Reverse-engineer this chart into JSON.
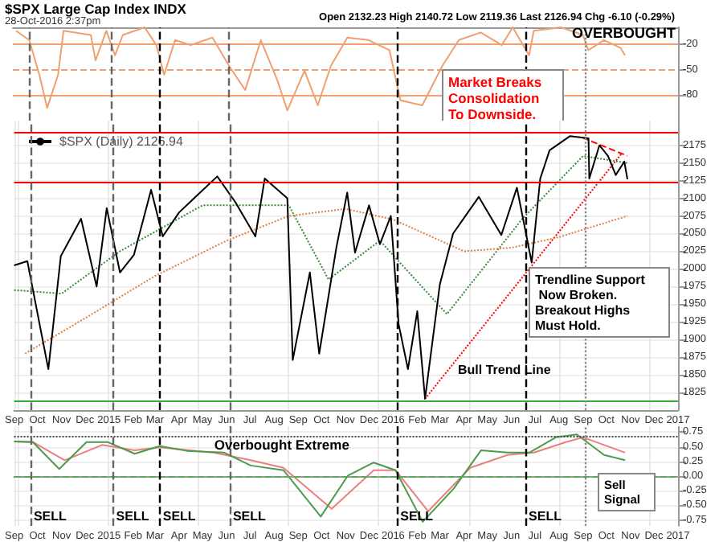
{
  "chart_data": [
    {
      "type": "line",
      "title": "$SPX Large Cap Index INDX",
      "subtitle": "28-Oct-2016 2:37pm",
      "annotations": [
        "Open 2132.23 High 2140.72 Low 2119.36 Last 2126.94 Chg -6.10 (-0.29%)",
        "OVERBOUGHT",
        "Market Breaks Consolidation To Downside."
      ],
      "xlim": [
        "2014-09-01",
        "2017-01-01"
      ],
      "ylim": [
        -110,
        0
      ],
      "yticks": [
        -20,
        -50,
        -80
      ],
      "tick_labels": "y",
      "grid": false,
      "marker": "none",
      "series": [
        {
          "color": "#f0a070",
          "x": [
            "2014-09-05",
            "2014-09-22",
            "2014-10-05",
            "2014-10-15",
            "2014-10-29",
            "2014-11-05",
            "2014-12-10",
            "2014-12-16",
            "2014-12-30",
            "2015-01-10",
            "2015-01-20",
            "2015-02-17",
            "2015-03-04",
            "2015-03-14",
            "2015-03-28",
            "2015-04-17",
            "2015-05-15",
            "2015-06-05",
            "2015-06-26",
            "2015-07-16",
            "2015-08-06",
            "2015-08-19",
            "2015-09-10",
            "2015-09-27",
            "2015-10-14",
            "2015-11-04",
            "2015-12-01",
            "2015-12-28",
            "2016-01-11",
            "2016-02-08",
            "2016-03-05",
            "2016-03-26",
            "2016-04-23",
            "2016-05-20",
            "2016-06-03",
            "2016-06-24",
            "2016-06-30",
            "2016-08-04",
            "2016-09-01",
            "2016-09-08",
            "2016-09-28",
            "2016-10-19",
            "2016-10-25"
          ],
          "values": [
            -4,
            -15,
            -56,
            -95,
            -56,
            -4,
            -9,
            -39,
            -4,
            -33,
            -9,
            0,
            -21,
            -56,
            -15,
            -21,
            -12,
            -45,
            -74,
            -15,
            -62,
            -98,
            -51,
            -92,
            -45,
            -12,
            -15,
            -27,
            -86,
            -92,
            -45,
            -15,
            -6,
            -21,
            0,
            -33,
            -4,
            0,
            -9,
            -27,
            -15,
            -24,
            -33
          ]
        }
      ],
      "ref_lines": [
        {
          "axis": "y",
          "value": -20,
          "color": "#f0a070",
          "line_style": "solid"
        },
        {
          "axis": "y",
          "value": -50,
          "color": "#f0a070",
          "line_style": "dashed"
        },
        {
          "axis": "y",
          "value": -80,
          "color": "#f0a070",
          "line_style": "solid"
        },
        {
          "axis": "x",
          "value": "2014-09-22",
          "color": "#666666",
          "line_style": "dashed"
        },
        {
          "axis": "x",
          "value": "2015-01-06",
          "color": "#666666",
          "line_style": "dashed"
        },
        {
          "axis": "x",
          "value": "2015-03-07",
          "color": "#000000",
          "line_style": "dashed"
        },
        {
          "axis": "x",
          "value": "2015-06-05",
          "color": "#666666",
          "line_style": "dashed"
        },
        {
          "axis": "x",
          "value": "2016-01-06",
          "color": "#000000",
          "line_style": "dashed"
        },
        {
          "axis": "x",
          "value": "2016-06-19",
          "color": "#000000",
          "line_style": "dashed"
        },
        {
          "axis": "x",
          "value": "2016-09-04",
          "color": "#888888",
          "line_style": "dotted"
        }
      ]
    },
    {
      "type": "line",
      "legend": "top left",
      "xlim": [
        "2014-09-01",
        "2017-01-01"
      ],
      "ylim": [
        1800,
        2210
      ],
      "yticks": [
        1825,
        1850,
        1875,
        1900,
        1925,
        1950,
        1975,
        2000,
        2025,
        2050,
        2075,
        2100,
        2125,
        2150,
        2175
      ],
      "grid": true,
      "marker": "none",
      "annotations": [
        "Trendline Support Now Broken. Breakout Highs Must Hold.",
        "Bull Trend Line"
      ],
      "xticks": [
        {
          "value": "2014-09",
          "label": "Sep"
        },
        {
          "value": "2014-10",
          "label": "Oct"
        },
        {
          "value": "2014-11",
          "label": "Nov"
        },
        {
          "value": "2014-12",
          "label": "Dec"
        },
        {
          "value": "2015-01",
          "label": "2015"
        },
        {
          "value": "2015-02",
          "label": "Feb"
        },
        {
          "value": "2015-03",
          "label": "Mar"
        },
        {
          "value": "2015-04",
          "label": "Apr"
        },
        {
          "value": "2015-05",
          "label": "May"
        },
        {
          "value": "2015-06",
          "label": "Jun"
        },
        {
          "value": "2015-07",
          "label": "Jul"
        },
        {
          "value": "2015-08",
          "label": "Aug"
        },
        {
          "value": "2015-09",
          "label": "Sep"
        },
        {
          "value": "2015-10",
          "label": "Oct"
        },
        {
          "value": "2015-11",
          "label": "Nov"
        },
        {
          "value": "2015-12",
          "label": "Dec"
        },
        {
          "value": "2016-01",
          "label": "2016"
        },
        {
          "value": "2016-02",
          "label": "Feb"
        },
        {
          "value": "2016-03",
          "label": "Mar"
        },
        {
          "value": "2016-04",
          "label": "Apr"
        },
        {
          "value": "2016-05",
          "label": "May"
        },
        {
          "value": "2016-06",
          "label": "Jun"
        },
        {
          "value": "2016-07",
          "label": "Jul"
        },
        {
          "value": "2016-08",
          "label": "Aug"
        },
        {
          "value": "2016-09",
          "label": "Sep"
        },
        {
          "value": "2016-10",
          "label": "Oct"
        },
        {
          "value": "2016-11",
          "label": "Nov"
        },
        {
          "value": "2016-12",
          "label": "Dec"
        },
        {
          "value": "2017-01",
          "label": "2017"
        }
      ],
      "series": [
        {
          "name": "$SPX (Daily) 2126.94",
          "color": "#000000",
          "x": [
            "2014-09-01",
            "2014-09-18",
            "2014-10-15",
            "2014-10-31",
            "2014-11-26",
            "2014-12-16",
            "2014-12-29",
            "2015-01-15",
            "2015-02-02",
            "2015-02-24",
            "2015-03-11",
            "2015-04-01",
            "2015-05-20",
            "2015-06-12",
            "2015-07-08",
            "2015-07-20",
            "2015-08-18",
            "2015-08-25",
            "2015-09-16",
            "2015-09-28",
            "2015-10-20",
            "2015-11-03",
            "2015-11-13",
            "2015-12-01",
            "2015-12-15",
            "2015-12-29",
            "2016-01-08",
            "2016-01-20",
            "2016-02-01",
            "2016-02-11",
            "2016-03-01",
            "2016-03-18",
            "2016-04-01",
            "2016-04-20",
            "2016-05-19",
            "2016-06-08",
            "2016-06-27",
            "2016-07-08",
            "2016-07-20",
            "2016-08-15",
            "2016-09-08",
            "2016-09-09",
            "2016-09-22",
            "2016-10-03",
            "2016-10-13",
            "2016-10-24",
            "2016-10-28"
          ],
          "values": [
            2005,
            2011,
            1858,
            2018,
            2071,
            1975,
            2086,
            1995,
            2020,
            2112,
            2046,
            2080,
            2131,
            2095,
            2046,
            2128,
            2100,
            1871,
            1995,
            1880,
            2030,
            2108,
            2023,
            2090,
            2035,
            2075,
            1922,
            1858,
            1940,
            1816,
            1978,
            2050,
            2072,
            2102,
            2048,
            2115,
            2009,
            2128,
            2168,
            2188,
            2185,
            2128,
            2175,
            2160,
            2133,
            2152,
            2127
          ]
        },
        {
          "color": "#e08040",
          "line_style": "dotted",
          "x": [
            "2014-09-15",
            "2014-12-01",
            "2015-03-01",
            "2015-06-01",
            "2015-08-20",
            "2015-11-01",
            "2016-01-01",
            "2016-04-01",
            "2016-06-01",
            "2016-08-01",
            "2016-10-28"
          ],
          "values": [
            1880,
            1930,
            1990,
            2040,
            2075,
            2085,
            2070,
            2025,
            2030,
            2045,
            2075
          ]
        },
        {
          "color": "#3a8a3a",
          "line_style": "dotted",
          "x": [
            "2014-09-01",
            "2014-11-01",
            "2015-01-15",
            "2015-05-01",
            "2015-08-20",
            "2015-10-10",
            "2015-12-15",
            "2016-03-10",
            "2016-06-15",
            "2016-09-01",
            "2016-10-28"
          ],
          "values": [
            1970,
            1965,
            2025,
            2090,
            2090,
            1985,
            2040,
            1936,
            2071,
            2160,
            2150
          ]
        },
        {
          "color": "#ff0000",
          "line_style": "dotted",
          "x": [
            "2016-02-11",
            "2016-10-21"
          ],
          "values": [
            1816,
            2164
          ]
        },
        {
          "color": "#ff0000",
          "line_style": "dashed",
          "x": [
            "2016-08-31",
            "2016-10-28"
          ],
          "values": [
            2186,
            2160
          ]
        }
      ],
      "ref_lines": [
        {
          "axis": "y",
          "value": 2194,
          "color": "#ff0000",
          "line_style": "solid"
        },
        {
          "axis": "y",
          "value": 2124,
          "color": "#ff0000",
          "line_style": "solid"
        },
        {
          "axis": "y",
          "value": 1812,
          "color": "#33aa33",
          "line_style": "solid"
        },
        {
          "axis": "x",
          "value": "2014-09-22",
          "color": "#666666",
          "line_style": "dashed"
        },
        {
          "axis": "x",
          "value": "2015-01-06",
          "color": "#666666",
          "line_style": "dashed"
        },
        {
          "axis": "x",
          "value": "2015-03-07",
          "color": "#000000",
          "line_style": "dashed"
        },
        {
          "axis": "x",
          "value": "2015-06-05",
          "color": "#666666",
          "line_style": "dashed"
        },
        {
          "axis": "x",
          "value": "2016-01-06",
          "color": "#000000",
          "line_style": "dashed"
        },
        {
          "axis": "x",
          "value": "2016-06-19",
          "color": "#000000",
          "line_style": "dashed"
        },
        {
          "axis": "x",
          "value": "2016-09-04",
          "color": "#888888",
          "line_style": "dotted"
        }
      ]
    },
    {
      "type": "line",
      "annotations": [
        "Sell Signal"
      ],
      "xlim": [
        "2014-09-01",
        "2017-01-01"
      ],
      "ylim": [
        -0.85,
        0.85
      ],
      "grid": true,
      "marker": "none",
      "yticks": [
        {
          "value": 0.75,
          "label": "0.75"
        },
        {
          "value": 0.5,
          "label": "0.50"
        },
        {
          "value": 0.25,
          "label": "0.25"
        },
        {
          "value": 0,
          "label": "0.00"
        },
        {
          "value": -0.25,
          "label": "-0.25"
        },
        {
          "value": -0.5,
          "label": "-0.50"
        },
        {
          "value": -0.75,
          "label": "-0.75"
        }
      ],
      "xticks": [
        {
          "value": "2014-09",
          "label": "Sep"
        },
        {
          "value": "2014-10",
          "label": "Oct"
        },
        {
          "value": "2014-11",
          "label": "Nov"
        },
        {
          "value": "2014-12",
          "label": "Dec"
        },
        {
          "value": "2015-01",
          "label": "2015"
        },
        {
          "value": "2015-02",
          "label": "Feb"
        },
        {
          "value": "2015-03",
          "label": "Mar"
        },
        {
          "value": "2015-04",
          "label": "Apr"
        },
        {
          "value": "2015-05",
          "label": "May"
        },
        {
          "value": "2015-06",
          "label": "Jun"
        },
        {
          "value": "2015-07",
          "label": "Jul"
        },
        {
          "value": "2015-08",
          "label": "Aug"
        },
        {
          "value": "2015-09",
          "label": "Sep"
        },
        {
          "value": "2015-10",
          "label": "Oct"
        },
        {
          "value": "2015-11",
          "label": "Nov"
        },
        {
          "value": "2015-12",
          "label": "Dec"
        },
        {
          "value": "2016-01",
          "label": "2016"
        },
        {
          "value": "2016-02",
          "label": "Feb"
        },
        {
          "value": "2016-03",
          "label": "Mar"
        },
        {
          "value": "2016-04",
          "label": "Apr"
        },
        {
          "value": "2016-05",
          "label": "May"
        },
        {
          "value": "2016-06",
          "label": "Jun"
        },
        {
          "value": "2016-07",
          "label": "Jul"
        },
        {
          "value": "2016-08",
          "label": "Aug"
        },
        {
          "value": "2016-09",
          "label": "Sep"
        },
        {
          "value": "2016-10",
          "label": "Oct"
        },
        {
          "value": "2016-11",
          "label": "Nov"
        },
        {
          "value": "2016-12",
          "label": "Dec"
        },
        {
          "value": "2017-01",
          "label": "2017"
        }
      ],
      "series": [
        {
          "color": "#4c9a4c",
          "x": [
            "2014-09-01",
            "2014-09-25",
            "2014-10-29",
            "2014-12-03",
            "2014-12-30",
            "2015-02-03",
            "2015-03-07",
            "2015-04-11",
            "2015-05-29",
            "2015-07-02",
            "2015-08-13",
            "2015-09-30",
            "2015-11-04",
            "2015-12-07",
            "2016-01-04",
            "2016-02-08",
            "2016-03-19",
            "2016-04-23",
            "2016-05-27",
            "2016-06-24",
            "2016-07-28",
            "2016-08-24",
            "2016-09-28",
            "2016-10-25"
          ],
          "values": [
            0.59,
            0.58,
            0.12,
            0.58,
            0.58,
            0.38,
            0.51,
            0.43,
            0.4,
            0.18,
            0.1,
            -0.69,
            0.01,
            0.23,
            0.1,
            -0.78,
            -0.21,
            0.44,
            0.4,
            0.4,
            0.66,
            0.71,
            0.36,
            0.27
          ]
        },
        {
          "color": "#e88080",
          "x": [
            "2014-09-01",
            "2014-09-25",
            "2014-11-05",
            "2014-12-23",
            "2015-02-03",
            "2015-03-07",
            "2015-05-15",
            "2015-07-02",
            "2015-08-13",
            "2015-10-14",
            "2015-12-07",
            "2016-01-04",
            "2016-02-15",
            "2016-04-09",
            "2016-05-27",
            "2016-06-30",
            "2016-08-10",
            "2016-09-01",
            "2016-09-28",
            "2016-10-25"
          ],
          "values": [
            0.59,
            0.58,
            0.27,
            0.53,
            0.44,
            0.49,
            0.4,
            0.27,
            0.14,
            -0.56,
            0.1,
            0.1,
            -0.6,
            0.14,
            0.36,
            0.4,
            0.58,
            0.66,
            0.53,
            0.4
          ]
        }
      ],
      "ref_lines": [
        {
          "axis": "y",
          "value": 0,
          "color": "#55aa55",
          "line_style": "dashed"
        },
        {
          "axis": "y",
          "value": 0.68,
          "color": "#444444",
          "line_style": "dotted",
          "label": "Overbought Extreme"
        },
        {
          "axis": "x",
          "value": "2014-09-22",
          "color": "#666666",
          "line_style": "dashed",
          "label": "SELL"
        },
        {
          "axis": "x",
          "value": "2015-01-06",
          "color": "#666666",
          "line_style": "dashed",
          "label": "SELL"
        },
        {
          "axis": "x",
          "value": "2015-03-07",
          "color": "#000000",
          "line_style": "dashed",
          "label": "SELL"
        },
        {
          "axis": "x",
          "value": "2015-06-05",
          "color": "#666666",
          "line_style": "dashed",
          "label": "SELL"
        },
        {
          "axis": "x",
          "value": "2016-01-06",
          "color": "#000000",
          "line_style": "dashed",
          "label": "SELL"
        },
        {
          "axis": "x",
          "value": "2016-06-19",
          "color": "#000000",
          "line_style": "dashed",
          "label": "SELL"
        },
        {
          "axis": "x",
          "value": "2016-09-04",
          "color": "#888888",
          "line_style": "dotted"
        }
      ]
    }
  ]
}
